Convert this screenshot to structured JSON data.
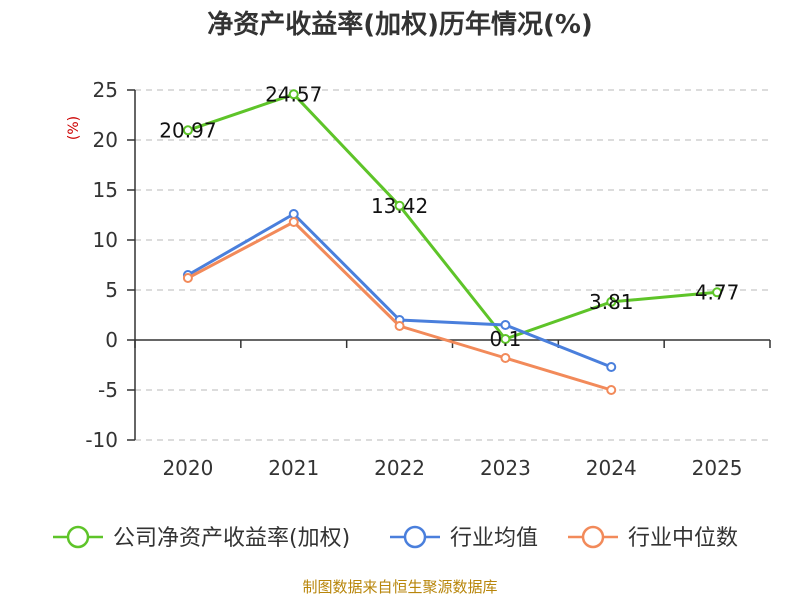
{
  "chart_data": {
    "type": "line",
    "title": "净资产收益率(加权)历年情况(%)",
    "ylabel": "(%)",
    "xlabel": "",
    "categories": [
      "2020",
      "2021",
      "2022",
      "2023",
      "2024",
      "2025"
    ],
    "ylim": [
      -10,
      25
    ],
    "yticks": [
      25,
      20,
      15,
      10,
      5,
      0,
      -5,
      -10
    ],
    "grid": true,
    "legend_position": "bottom",
    "series": [
      {
        "name": "公司净资产收益率(加权)",
        "color": "#5ec429",
        "values": [
          20.97,
          24.57,
          13.42,
          0.1,
          3.81,
          4.77
        ],
        "labels": [
          "20.97",
          "24.57",
          "13.42",
          "0.1",
          "3.81",
          "4.77"
        ]
      },
      {
        "name": "行业均值",
        "color": "#4a7fdc",
        "values": [
          6.5,
          12.6,
          2.0,
          1.5,
          -2.7,
          null
        ]
      },
      {
        "name": "行业中位数",
        "color": "#f28a5a",
        "values": [
          6.2,
          11.8,
          1.4,
          -1.8,
          -5.0,
          null
        ]
      }
    ],
    "source": "制图数据来自恒生聚源数据库"
  }
}
